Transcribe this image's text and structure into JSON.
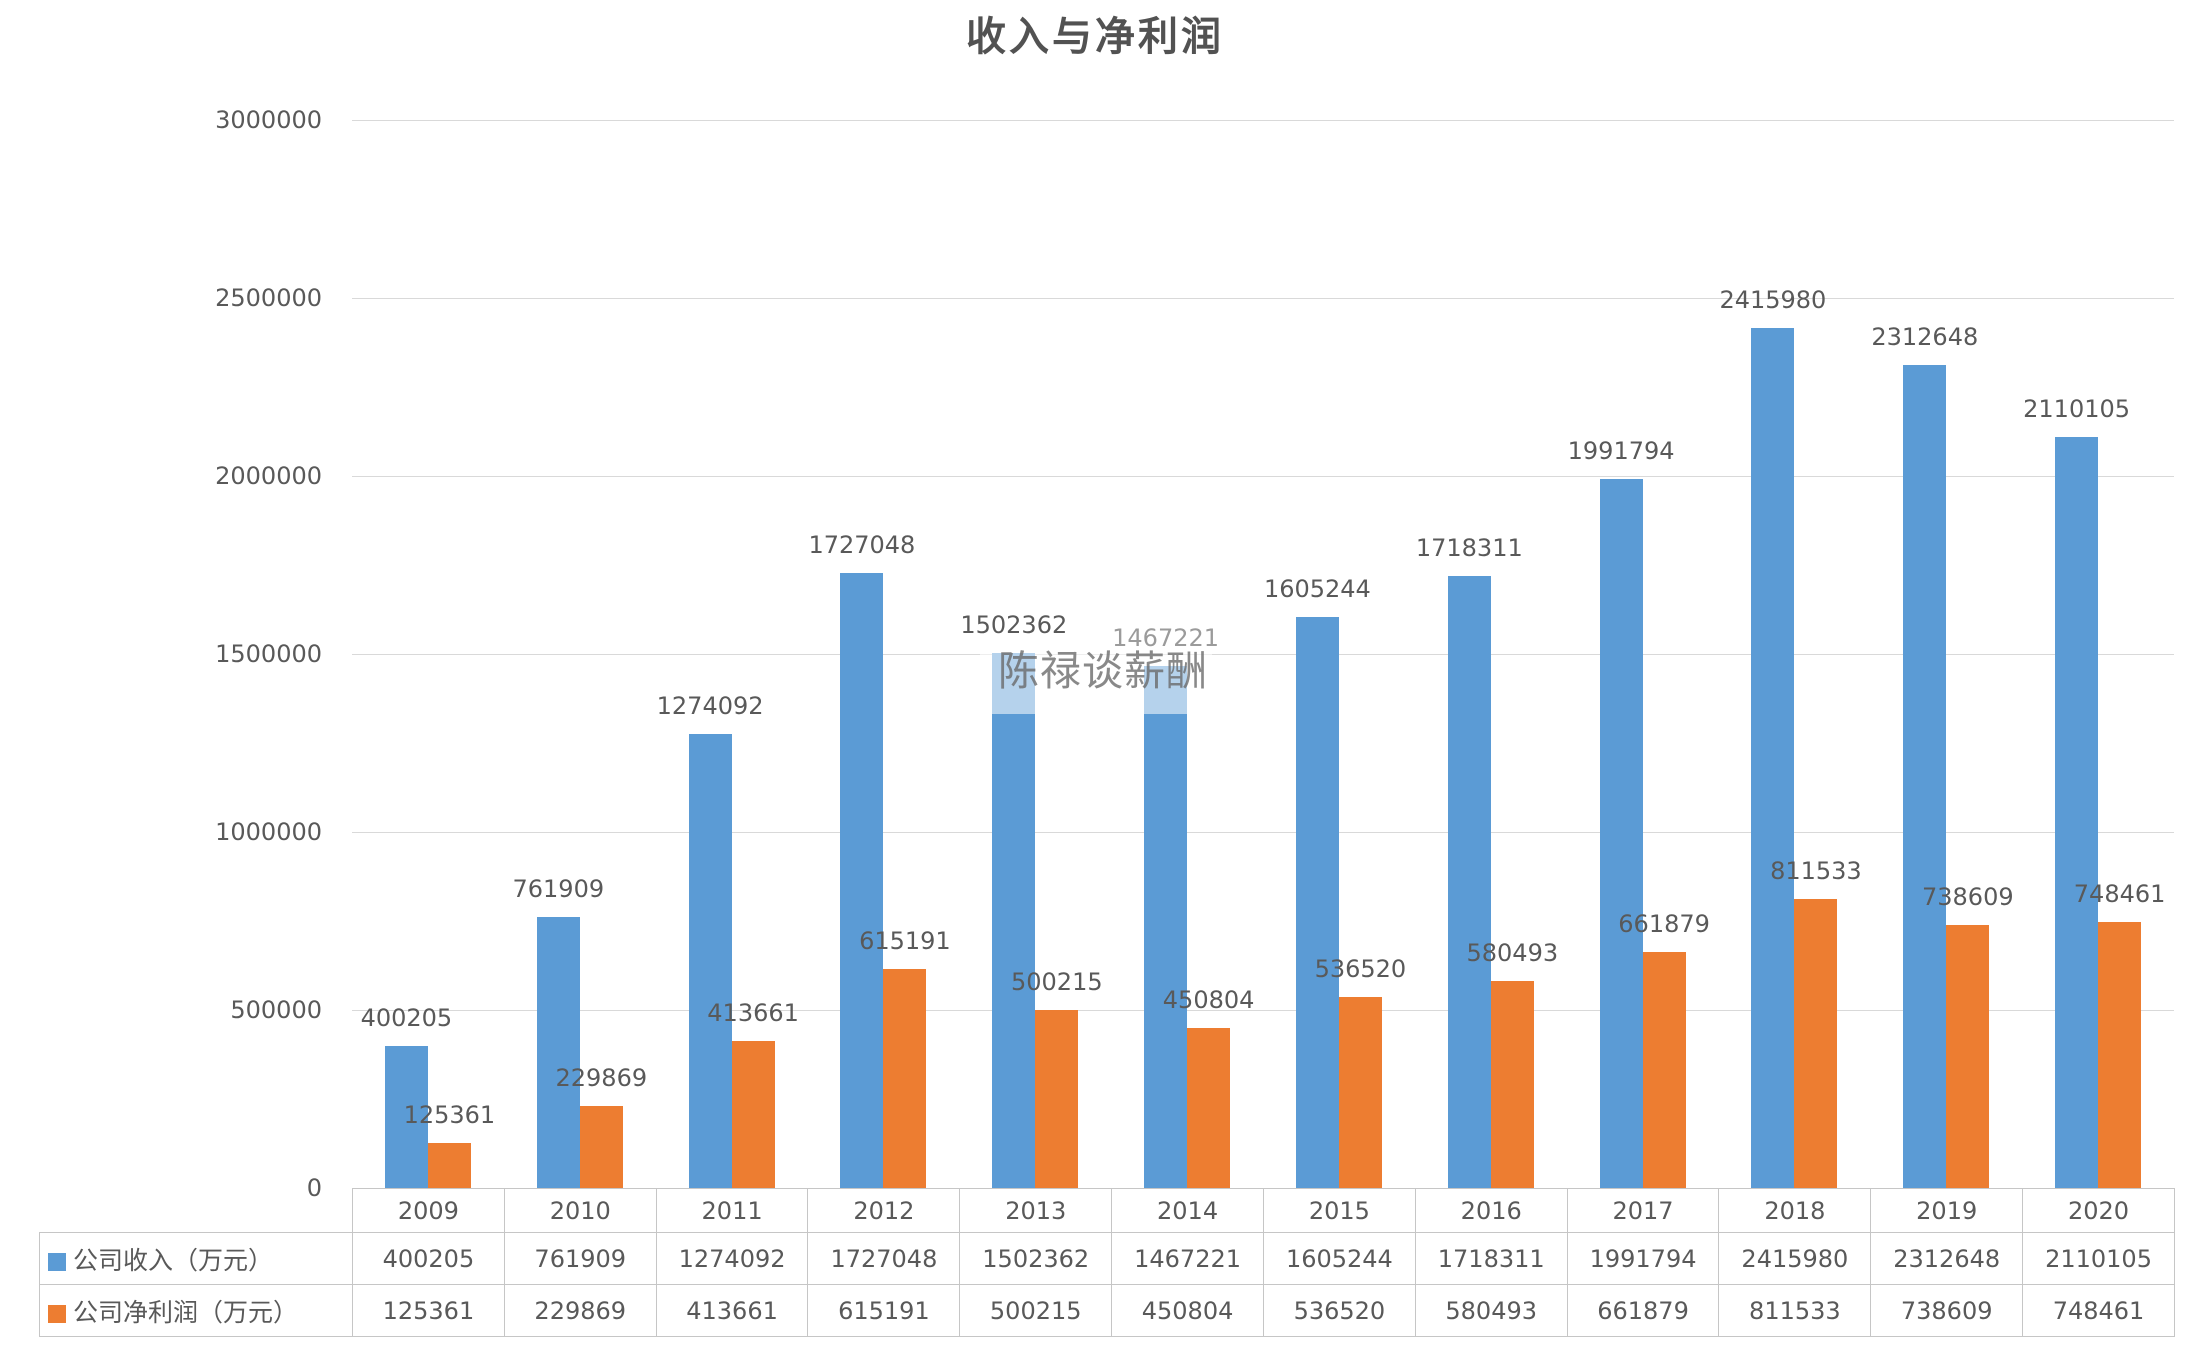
{
  "chart_data": {
    "type": "bar",
    "title": "收入与净利润",
    "watermark": "陈禄谈薪酬",
    "categories": [
      "2009",
      "2010",
      "2011",
      "2012",
      "2013",
      "2014",
      "2015",
      "2016",
      "2017",
      "2018",
      "2019",
      "2020"
    ],
    "series": [
      {
        "name": "公司收入（万元）",
        "color": "#5B9BD5",
        "values": [
          400205,
          761909,
          1274092,
          1727048,
          1502362,
          1467221,
          1605244,
          1718311,
          1991794,
          2415980,
          2312648,
          2110105
        ]
      },
      {
        "name": "公司净利润（万元）",
        "color": "#ED7D31",
        "values": [
          125361,
          229869,
          413661,
          615191,
          500215,
          450804,
          536520,
          580493,
          661879,
          811533,
          738609,
          748461
        ]
      }
    ],
    "ylim": [
      0,
      3000000
    ],
    "y_ticks": [
      0,
      500000,
      1000000,
      1500000,
      2000000,
      2500000,
      3000000
    ],
    "y_tick_labels": [
      "0",
      "500000",
      "1000000",
      "1500000",
      "2000000",
      "2500000",
      "3000000"
    ],
    "grid": true,
    "data_labels": true,
    "legend_position": "data-table-left",
    "colors": {
      "grid": "#D9D9D9",
      "text": "#595959",
      "title": "#525252",
      "table_border": "#C6C6C6"
    }
  }
}
